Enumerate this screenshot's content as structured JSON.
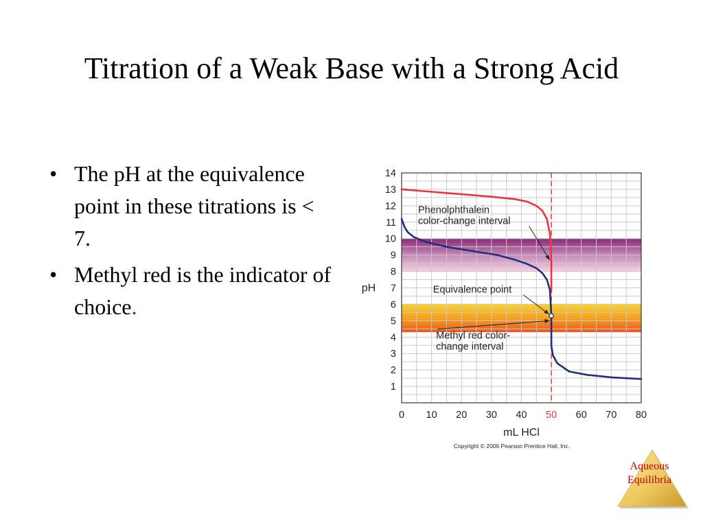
{
  "slide": {
    "title": "Titration of a Weak Base with a Strong Acid",
    "bullets": [
      {
        "text": "The pH at the equivalence point in these titrations is < 7.",
        "highlight": ""
      },
      {
        "text": "Methyl red is the indicator of choice",
        "highlight": "."
      }
    ],
    "bullet_symbol": "•",
    "logo": {
      "line1": "Aqueous",
      "line2": "Equilibria"
    }
  },
  "chart_data": {
    "type": "line",
    "xlabel": "mL HCl",
    "ylabel": "pH",
    "xlim": [
      0,
      80
    ],
    "ylim": [
      0,
      14
    ],
    "x_ticks": [
      "0",
      "10",
      "20",
      "30",
      "40",
      "50",
      "60",
      "70",
      "80"
    ],
    "y_ticks": [
      "1",
      "2",
      "3",
      "4",
      "5",
      "6",
      "7",
      "8",
      "9",
      "10",
      "11",
      "12",
      "13",
      "14"
    ],
    "highlight_x_tick": "50",
    "grid": true,
    "equivalence_volume": 50,
    "series": [
      {
        "color": "#e8343e",
        "points": [
          [
            0,
            13.0
          ],
          [
            10,
            12.85
          ],
          [
            20,
            12.7
          ],
          [
            30,
            12.55
          ],
          [
            38,
            12.4
          ],
          [
            42,
            12.25
          ],
          [
            45,
            12.0
          ],
          [
            47,
            11.7
          ],
          [
            48.5,
            11.2
          ],
          [
            49.5,
            10.3
          ],
          [
            49.8,
            9.5
          ],
          [
            50,
            8.5
          ],
          [
            50,
            6.8
          ]
        ]
      },
      {
        "color": "#1f2f7a",
        "points": [
          [
            0,
            11.2
          ],
          [
            1,
            10.7
          ],
          [
            2,
            10.4
          ],
          [
            4,
            10.1
          ],
          [
            8,
            9.8
          ],
          [
            15,
            9.5
          ],
          [
            25,
            9.2
          ],
          [
            32,
            9.0
          ],
          [
            38,
            8.7
          ],
          [
            42,
            8.45
          ],
          [
            45,
            8.2
          ],
          [
            47,
            7.9
          ],
          [
            48.5,
            7.5
          ],
          [
            49.5,
            6.9
          ],
          [
            50,
            5.3
          ],
          [
            50,
            3.5
          ],
          [
            50.5,
            2.9
          ],
          [
            52,
            2.4
          ],
          [
            56,
            1.9
          ],
          [
            62,
            1.7
          ],
          [
            70,
            1.55
          ],
          [
            80,
            1.45
          ]
        ]
      }
    ],
    "bands": [
      {
        "name": "phenolphthalein",
        "ymin": 8.0,
        "ymax": 10.0,
        "colors": [
          "#8a2a78",
          "#c48ab8",
          "#f6cfe0"
        ]
      },
      {
        "name": "methyl red",
        "ymin": 4.3,
        "ymax": 6.0,
        "colors": [
          "#f8d030",
          "#f5a021",
          "#e8581f"
        ]
      }
    ],
    "equivalence_point": {
      "x": 50,
      "y": 5.3
    },
    "annotations": [
      {
        "name": "phenolphthalein-label",
        "lines": [
          "Phenolphthalein",
          "color-change interval"
        ],
        "x": 5.5,
        "y": 11.55,
        "arrow_to": [
          49.4,
          8.7
        ]
      },
      {
        "name": "equivalence-label",
        "lines": [
          "Equivalence point"
        ],
        "x": 10.5,
        "y": 6.7,
        "arrow_to": [
          49.2,
          5.4
        ]
      },
      {
        "name": "methyl-red-label",
        "lines": [
          "Methyl red color-",
          "change interval"
        ],
        "x": 11.5,
        "y": 3.9,
        "arrow_to": [
          49.4,
          5.0
        ]
      }
    ],
    "copyright": "Copyright © 2006 Pearson Prentice Hall, Inc."
  }
}
